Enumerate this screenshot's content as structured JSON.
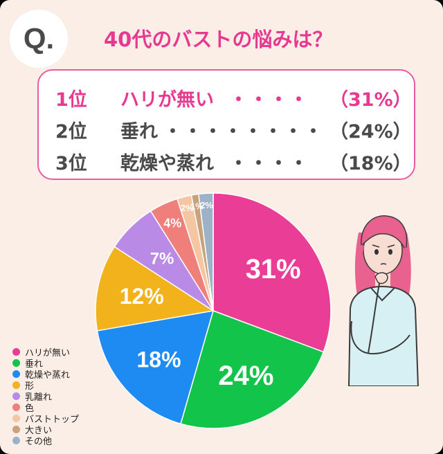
{
  "badge": "Q.",
  "title": "40代のバストの悩みは？",
  "ranking": [
    {
      "rank": "1位",
      "item": "ハリが無い",
      "dots": "・・・・",
      "pct": "（31%）",
      "highlight": true
    },
    {
      "rank": "2位",
      "item": "垂れ",
      "dots": "・・・・・・・・",
      "pct": "（24%）",
      "highlight": false
    },
    {
      "rank": "3位",
      "item": "乾燥や蒸れ",
      "dots": "・・・・",
      "pct": "（18%）",
      "highlight": false
    }
  ],
  "chart_data": {
    "type": "pie",
    "title": "",
    "categories": [
      "ハリが無い",
      "垂れ",
      "乾燥や蒸れ",
      "形",
      "乳離れ",
      "色",
      "バストトップ",
      "大きい",
      "その他"
    ],
    "values": [
      31,
      24,
      18,
      12,
      7,
      4,
      2,
      1,
      2
    ],
    "labels": [
      "31%",
      "24%",
      "18%",
      "12%",
      "7%",
      "4%",
      "2%",
      "1%",
      "2%"
    ],
    "colors": [
      "#ea3d96",
      "#12c44a",
      "#1e8bf2",
      "#f2b21c",
      "#b98ae6",
      "#f07f7b",
      "#f5c6a2",
      "#c7a27c",
      "#9db2c8"
    ],
    "start": "12 o'clock, clockwise",
    "legend": "bottom-left"
  },
  "illustration": "pondering-woman"
}
